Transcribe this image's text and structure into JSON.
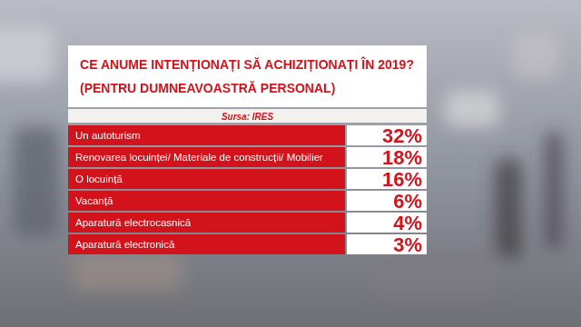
{
  "chart_data": {
    "type": "table",
    "title": "CE ANUME INTENȚIONAȚI SĂ ACHIZIȚIONAȚI ÎN 2019?",
    "subtitle": "(PENTRU DUMNEAVOASTRĂ PERSONAL)",
    "annotations": [
      "Sursa: IRES"
    ],
    "categories": [
      "Un autoturism",
      "Renovarea locuinței/ Materiale de construcții/ Mobilier",
      "O locuință",
      "Vacanță",
      "Aparatură electrocasnică",
      "Aparatură electronică"
    ],
    "values": [
      32,
      18,
      16,
      6,
      4,
      3
    ],
    "value_labels": [
      "32%",
      "18%",
      "16%",
      "6%",
      "4%",
      "3%"
    ],
    "data_labels": true,
    "color": "#d3131b"
  }
}
